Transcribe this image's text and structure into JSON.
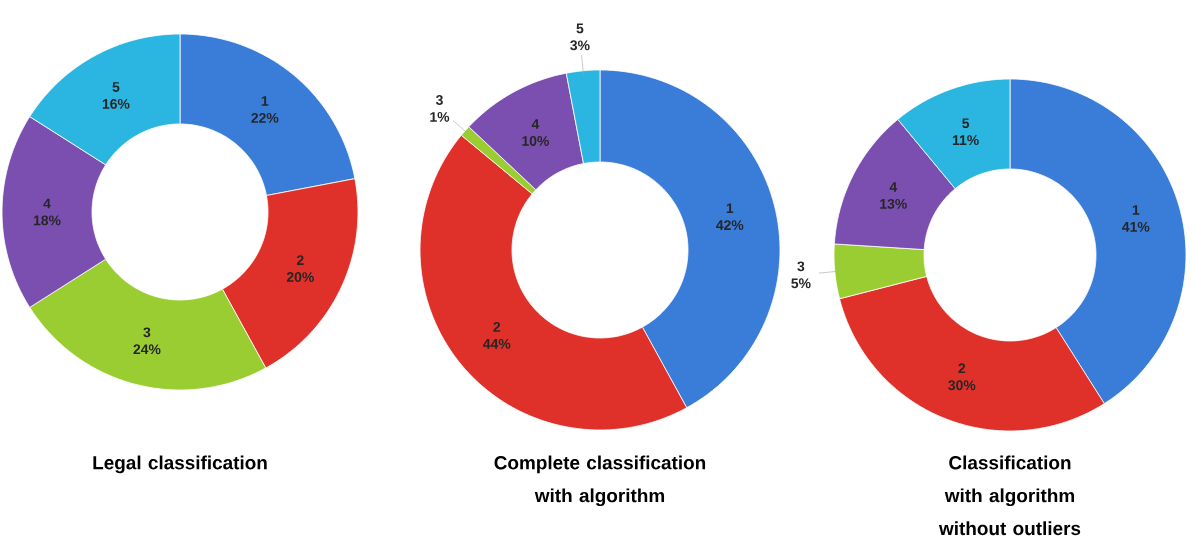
{
  "chart_data": [
    {
      "type": "donut",
      "title": "Legal classification",
      "categories": [
        "1",
        "2",
        "3",
        "4",
        "5"
      ],
      "values": [
        22,
        20,
        24,
        18,
        16
      ],
      "value_labels": [
        "22%",
        "20%",
        "24%",
        "18%",
        "16%"
      ],
      "colors": [
        "#3a7dd8",
        "#e0302a",
        "#9acd32",
        "#7a4fb0",
        "#2ab6e0"
      ]
    },
    {
      "type": "donut",
      "title": "Complete classification with algorithm",
      "categories": [
        "1",
        "2",
        "3",
        "4",
        "5"
      ],
      "values": [
        42,
        44,
        1,
        10,
        3
      ],
      "value_labels": [
        "42%",
        "44%",
        "1%",
        "10%",
        "3%"
      ],
      "colors": [
        "#3a7dd8",
        "#e0302a",
        "#9acd32",
        "#7a4fb0",
        "#2ab6e0"
      ]
    },
    {
      "type": "donut",
      "title": "Classification with algorithm without outliers",
      "categories": [
        "1",
        "2",
        "3",
        "4",
        "5"
      ],
      "values": [
        41,
        30,
        5,
        13,
        11
      ],
      "value_labels": [
        "41%",
        "30%",
        "5%",
        "13%",
        "11%"
      ],
      "colors": [
        "#3a7dd8",
        "#e0302a",
        "#9acd32",
        "#7a4fb0",
        "#2ab6e0"
      ]
    }
  ]
}
